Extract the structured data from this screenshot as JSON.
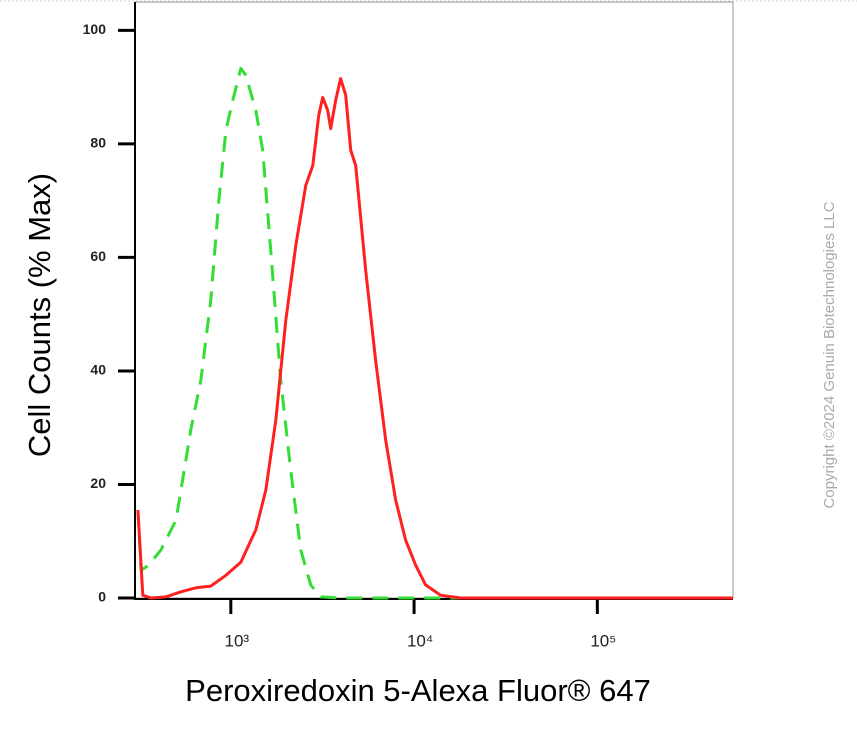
{
  "chart_data": {
    "type": "line",
    "xlabel": "Peroxiredoxin 5-Alexa Fluor® 647",
    "ylabel": "Cell Counts (% Max)",
    "watermark": "Copyright ©2024 Genuin Biotechnologies LLC",
    "xscale": "log",
    "xlim": [
      300,
      550000
    ],
    "ylim": [
      0,
      105
    ],
    "xticks": [
      {
        "value": 1000,
        "label": "10³"
      },
      {
        "value": 10000,
        "label": "10⁴"
      },
      {
        "value": 100000,
        "label": "10⁵"
      }
    ],
    "yticks": [
      0,
      20,
      40,
      60,
      80,
      100
    ],
    "series": [
      {
        "color": "#ff2020",
        "line_style": "solid",
        "x": [
          311,
          331,
          366,
          442,
          534,
          645,
          778,
          940,
          1133,
          1368,
          1552,
          1760,
          1995,
          2262,
          2564,
          2800,
          3018,
          3172,
          3380,
          3509,
          3735,
          3975,
          4236,
          4508,
          4800,
          5445,
          6170,
          7000,
          7925,
          8995,
          10190,
          11560,
          13940,
          17910,
          550000
        ],
        "values": [
          15.5,
          0.5,
          0,
          0.2,
          1.1,
          1.8,
          2.1,
          4.0,
          6.3,
          12.0,
          19.0,
          31.3,
          48.9,
          62.1,
          72.7,
          76.2,
          85.0,
          88.2,
          85.9,
          82.7,
          87.7,
          91.5,
          88.6,
          78.9,
          76.2,
          57.7,
          41.9,
          27.8,
          17.3,
          10.2,
          5.8,
          2.3,
          0.5,
          0,
          0
        ]
      },
      {
        "color": "#33dd33",
        "line_style": "dashed",
        "x": [
          311,
          324,
          357,
          416,
          502,
          605,
          687,
          778,
          861,
          940,
          1025,
          1133,
          1207,
          1368,
          1493,
          1651,
          1872,
          2123,
          2405,
          2729,
          3093,
          3975,
          550000
        ],
        "values": [
          15.5,
          4.9,
          5.8,
          8.5,
          13.7,
          29.6,
          38.4,
          52.5,
          70.1,
          82.4,
          87.7,
          93.3,
          92.1,
          85.9,
          78.9,
          61.3,
          38.4,
          22.5,
          8.5,
          2.3,
          0.2,
          0,
          0
        ]
      }
    ]
  }
}
